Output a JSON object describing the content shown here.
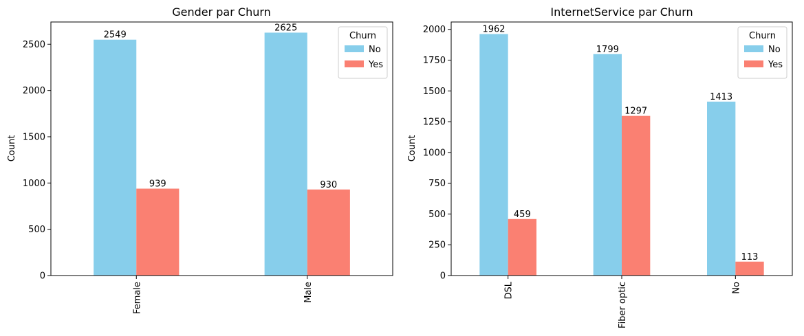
{
  "chart_data": [
    {
      "type": "bar",
      "title": "Gender par Churn",
      "xlabel": "",
      "ylabel": "Count",
      "categories": [
        "Female",
        "Male"
      ],
      "series": [
        {
          "name": "No",
          "values": [
            2549,
            2625
          ],
          "color": "#87CEEB"
        },
        {
          "name": "Yes",
          "values": [
            939,
            930
          ],
          "color": "#FA8072"
        }
      ],
      "ylim": [
        0,
        2740
      ],
      "yticks": [
        0,
        500,
        1000,
        1500,
        2000,
        2500
      ],
      "legend": {
        "title": "Churn",
        "placement": "top-right"
      },
      "grid": false
    },
    {
      "type": "bar",
      "title": "InternetService par Churn",
      "xlabel": "",
      "ylabel": "Count",
      "categories": [
        "DSL",
        "Fiber optic",
        "No"
      ],
      "series": [
        {
          "name": "No",
          "values": [
            1962,
            1799,
            1413
          ],
          "color": "#87CEEB"
        },
        {
          "name": "Yes",
          "values": [
            459,
            1297,
            113
          ],
          "color": "#FA8072"
        }
      ],
      "ylim": [
        0,
        2060
      ],
      "yticks": [
        0,
        250,
        500,
        750,
        1000,
        1250,
        1500,
        1750,
        2000
      ],
      "legend": {
        "title": "Churn",
        "placement": "top-right"
      },
      "grid": false
    }
  ]
}
